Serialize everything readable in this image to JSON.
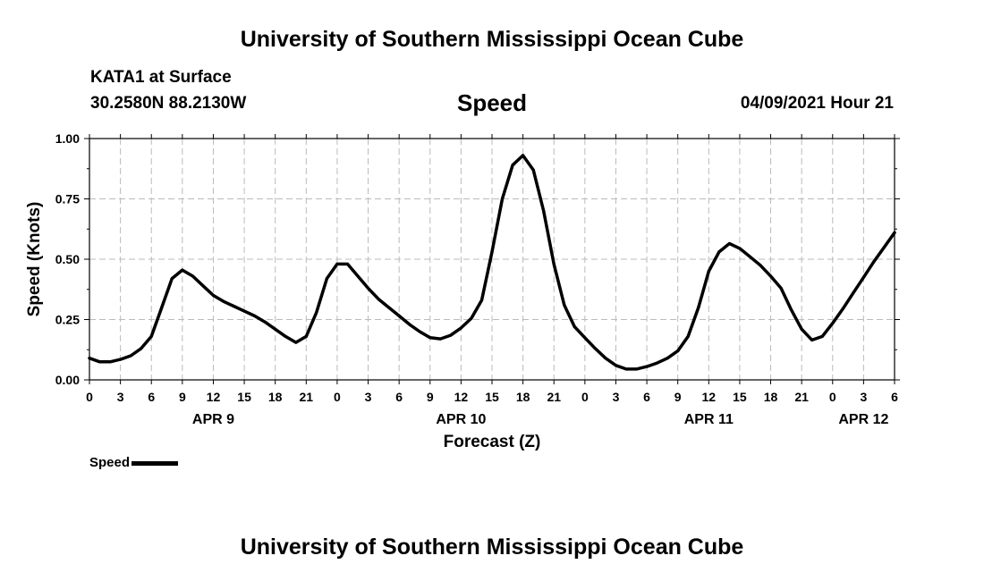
{
  "header": {
    "title": "University of Southern Mississippi Ocean Cube",
    "station": "KATA1 at Surface",
    "coords": "30.2580N  88.2130W",
    "variable": "Speed",
    "datetime": "04/09/2021 Hour 21"
  },
  "footer": {
    "title": "University of Southern Mississippi Ocean Cube"
  },
  "legend": {
    "label": "Speed"
  },
  "colors": {
    "line": "#000000",
    "grid": "#bbbbbb",
    "axis": "#000000"
  },
  "chart_data": {
    "type": "line",
    "title": "Speed",
    "xlabel": "Forecast (Z)",
    "ylabel": "Speed (Knots)",
    "xlim": [
      0,
      78
    ],
    "ylim": [
      0,
      1.0
    ],
    "grid": true,
    "x_unit": "hours since APR 9 00Z",
    "yticks": [
      {
        "value": 0.0,
        "label": "0.00"
      },
      {
        "value": 0.25,
        "label": "0.25"
      },
      {
        "value": 0.5,
        "label": "0.50"
      },
      {
        "value": 0.75,
        "label": "0.75"
      },
      {
        "value": 1.0,
        "label": "1.00"
      }
    ],
    "xticks": [
      {
        "value": 0,
        "label": "0"
      },
      {
        "value": 3,
        "label": "3"
      },
      {
        "value": 6,
        "label": "6"
      },
      {
        "value": 9,
        "label": "9"
      },
      {
        "value": 12,
        "label": "12"
      },
      {
        "value": 15,
        "label": "15"
      },
      {
        "value": 18,
        "label": "18"
      },
      {
        "value": 21,
        "label": "21"
      },
      {
        "value": 24,
        "label": "0"
      },
      {
        "value": 27,
        "label": "3"
      },
      {
        "value": 30,
        "label": "6"
      },
      {
        "value": 33,
        "label": "9"
      },
      {
        "value": 36,
        "label": "12"
      },
      {
        "value": 39,
        "label": "15"
      },
      {
        "value": 42,
        "label": "18"
      },
      {
        "value": 45,
        "label": "21"
      },
      {
        "value": 48,
        "label": "0"
      },
      {
        "value": 51,
        "label": "3"
      },
      {
        "value": 54,
        "label": "6"
      },
      {
        "value": 57,
        "label": "9"
      },
      {
        "value": 60,
        "label": "12"
      },
      {
        "value": 63,
        "label": "15"
      },
      {
        "value": 66,
        "label": "18"
      },
      {
        "value": 69,
        "label": "21"
      },
      {
        "value": 72,
        "label": "0"
      },
      {
        "value": 75,
        "label": "3"
      },
      {
        "value": 78,
        "label": "6"
      }
    ],
    "day_labels": [
      {
        "value": 12,
        "label": "APR 9"
      },
      {
        "value": 36,
        "label": "APR 10"
      },
      {
        "value": 60,
        "label": "APR 11"
      },
      {
        "value": 75,
        "label": "APR 12"
      }
    ],
    "series": [
      {
        "name": "Speed",
        "x": [
          0,
          1,
          2,
          3,
          4,
          5,
          6,
          7,
          8,
          9,
          10,
          11,
          12,
          13,
          14,
          15,
          16,
          17,
          18,
          19,
          20,
          21,
          22,
          23,
          24,
          25,
          26,
          27,
          28,
          29,
          30,
          31,
          32,
          33,
          34,
          35,
          36,
          37,
          38,
          39,
          40,
          41,
          42,
          43,
          44,
          45,
          46,
          47,
          48,
          49,
          50,
          51,
          52,
          53,
          54,
          55,
          56,
          57,
          58,
          59,
          60,
          61,
          62,
          63,
          64,
          65,
          66,
          67,
          68,
          69,
          70,
          71,
          72,
          73,
          74,
          75,
          76,
          77,
          78
        ],
        "values": [
          0.09,
          0.075,
          0.075,
          0.085,
          0.1,
          0.13,
          0.18,
          0.3,
          0.42,
          0.455,
          0.43,
          0.39,
          0.35,
          0.325,
          0.305,
          0.285,
          0.265,
          0.24,
          0.21,
          0.18,
          0.155,
          0.18,
          0.28,
          0.42,
          0.48,
          0.48,
          0.43,
          0.38,
          0.335,
          0.3,
          0.265,
          0.23,
          0.2,
          0.175,
          0.17,
          0.185,
          0.215,
          0.255,
          0.33,
          0.53,
          0.75,
          0.89,
          0.93,
          0.87,
          0.7,
          0.48,
          0.31,
          0.22,
          0.175,
          0.13,
          0.09,
          0.06,
          0.045,
          0.045,
          0.055,
          0.07,
          0.09,
          0.12,
          0.18,
          0.3,
          0.45,
          0.53,
          0.565,
          0.545,
          0.51,
          0.475,
          0.43,
          0.38,
          0.29,
          0.21,
          0.165,
          0.18,
          0.235,
          0.295,
          0.36,
          0.425,
          0.49,
          0.55,
          0.61
        ]
      }
    ]
  }
}
